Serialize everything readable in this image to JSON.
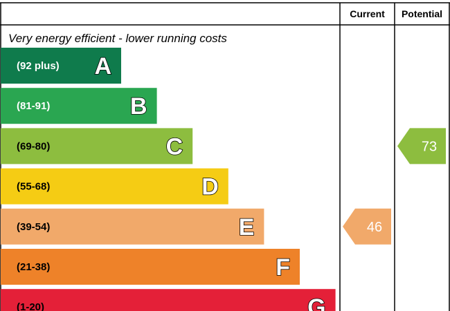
{
  "chart_data": {
    "type": "bar",
    "title": "",
    "columns": {
      "current_label": "Current",
      "potential_label": "Potential"
    },
    "caption_top": "Very energy efficient - lower running costs",
    "bands": [
      {
        "letter": "A",
        "range": "(92 plus)",
        "min": 92,
        "max": 100,
        "color": "#0f7b4c",
        "text_color": "#ffffff"
      },
      {
        "letter": "B",
        "range": "(81-91)",
        "min": 81,
        "max": 91,
        "color": "#2aa651",
        "text_color": "#ffffff"
      },
      {
        "letter": "C",
        "range": "(69-80)",
        "min": 69,
        "max": 80,
        "color": "#8dbd3f",
        "text_color": "#000000"
      },
      {
        "letter": "D",
        "range": "(55-68)",
        "min": 55,
        "max": 68,
        "color": "#f5cc14",
        "text_color": "#000000"
      },
      {
        "letter": "E",
        "range": "(39-54)",
        "min": 39,
        "max": 54,
        "color": "#f1a96a",
        "text_color": "#000000"
      },
      {
        "letter": "F",
        "range": "(21-38)",
        "min": 21,
        "max": 38,
        "color": "#ee8229",
        "text_color": "#000000"
      },
      {
        "letter": "G",
        "range": "(1-20)",
        "min": 1,
        "max": 20,
        "color": "#e42038",
        "text_color": "#000000"
      }
    ],
    "current": {
      "value": 46,
      "band": "E",
      "color": "#f1a96a"
    },
    "potential": {
      "value": 73,
      "band": "C",
      "color": "#8dbd3f"
    }
  }
}
